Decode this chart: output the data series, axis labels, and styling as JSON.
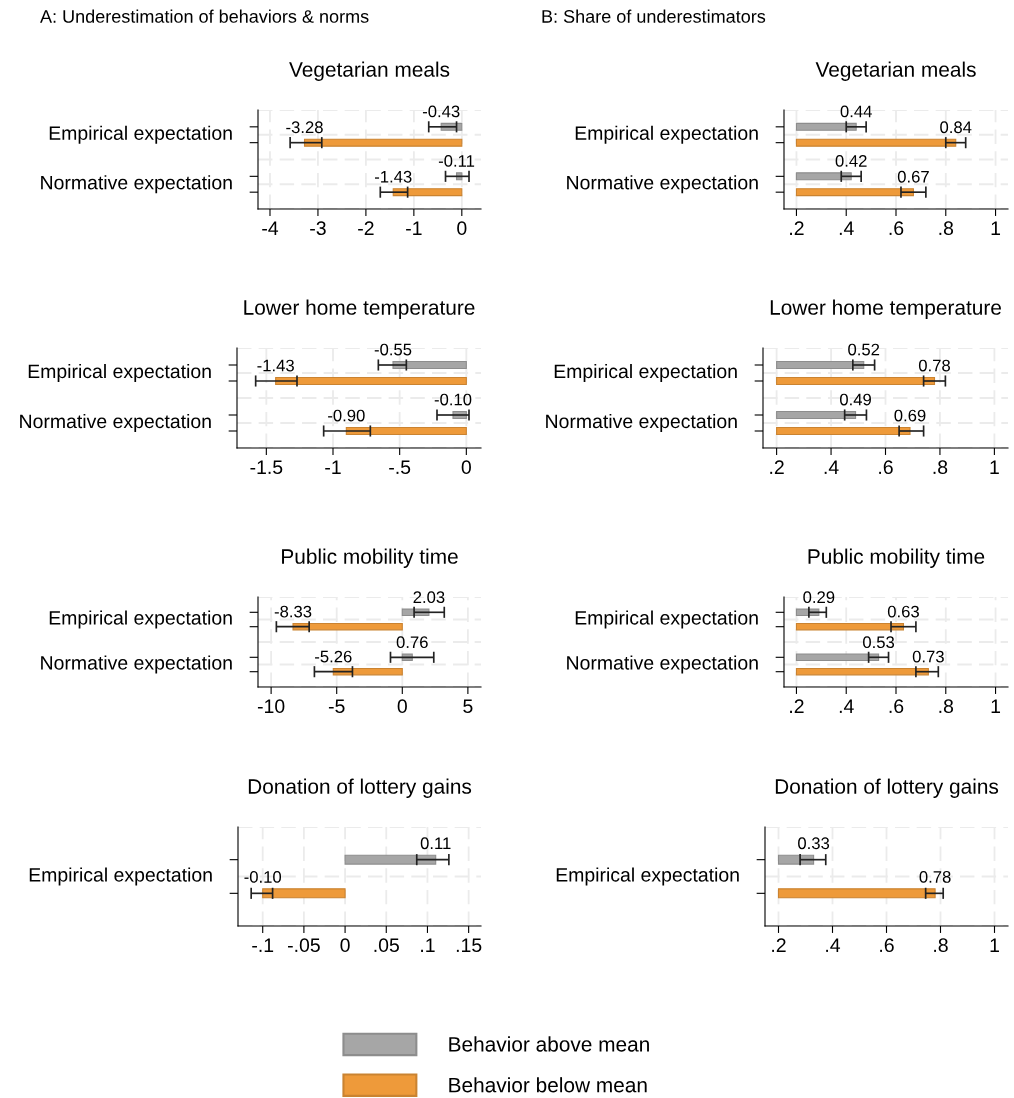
{
  "chart_data": [
    {
      "type": "bar",
      "orientation": "horizontal",
      "subtitle": "A: Underestimation of behaviors & norms",
      "title": "Vegetarian meals",
      "categories": [
        "Empirical expectation",
        "Normative expectation"
      ],
      "xlim": [
        -4.25,
        0.4
      ],
      "xticks": [
        -4,
        -3,
        -2,
        -1,
        0
      ],
      "grid": true,
      "series": [
        {
          "color": "#a6a6a6",
          "values": [
            -0.43,
            -0.11
          ],
          "errors": [
            [
              -0.69,
              -0.11
            ],
            [
              -0.34,
              0.15
            ]
          ],
          "value_labels": [
            "-0.43",
            "-0.11"
          ]
        },
        {
          "color": "#ee9a3a",
          "values": [
            -3.28,
            -1.43
          ],
          "errors": [
            [
              -3.58,
              -2.92
            ],
            [
              -1.7,
              -1.13
            ]
          ],
          "value_labels": [
            "-3.28",
            "-1.43"
          ]
        }
      ]
    },
    {
      "type": "bar",
      "orientation": "horizontal",
      "subtitle": "B: Share of underestimators",
      "title": "Vegetarian meals",
      "categories": [
        "Empirical expectation",
        "Normative expectation"
      ],
      "xlim": [
        0.15,
        1.05
      ],
      "xticks": [
        {
          "value": 0.2,
          "label": ".2"
        },
        {
          "value": 0.4,
          "label": ".4"
        },
        {
          "value": 0.6,
          "label": ".6"
        },
        {
          "value": 0.8,
          "label": ".8"
        },
        1
      ],
      "grid": true,
      "series": [
        {
          "color": "#a6a6a6",
          "base": [
            0.2,
            0.2
          ],
          "values": [
            0.24,
            0.22
          ],
          "errors": [
            [
              0.4,
              0.48
            ],
            [
              0.38,
              0.46
            ]
          ],
          "value_labels": [
            "0.44",
            "0.42"
          ]
        },
        {
          "color": "#ee9a3a",
          "base": [
            0.2,
            0.2
          ],
          "values": [
            0.64,
            0.47
          ],
          "errors": [
            [
              0.8,
              0.88
            ],
            [
              0.62,
              0.72
            ]
          ],
          "value_labels": [
            "0.84",
            "0.67"
          ]
        }
      ]
    },
    {
      "type": "bar",
      "orientation": "horizontal",
      "title": "Lower home temperature",
      "categories": [
        "Empirical expectation",
        "Normative expectation"
      ],
      "xlim": [
        -1.72,
        0.11
      ],
      "xticks": [
        -1.5,
        -1,
        {
          "value": -0.5,
          "label": "-.5"
        },
        0
      ],
      "grid": true,
      "series": [
        {
          "color": "#a6a6a6",
          "values": [
            -0.55,
            -0.1
          ],
          "errors": [
            [
              -0.66,
              -0.45
            ],
            [
              -0.22,
              0.02
            ]
          ],
          "value_labels": [
            "-0.55",
            "-0.10"
          ]
        },
        {
          "color": "#ee9a3a",
          "values": [
            -1.43,
            -0.9
          ],
          "errors": [
            [
              -1.58,
              -1.27
            ],
            [
              -1.07,
              -0.72
            ]
          ],
          "value_labels": [
            "-1.43",
            "-0.90"
          ]
        }
      ]
    },
    {
      "type": "bar",
      "orientation": "horizontal",
      "title": "Lower home temperature",
      "categories": [
        "Empirical expectation",
        "Normative expectation"
      ],
      "xlim": [
        0.15,
        1.05
      ],
      "xticks": [
        {
          "value": 0.2,
          "label": ".2"
        },
        {
          "value": 0.4,
          "label": ".4"
        },
        {
          "value": 0.6,
          "label": ".6"
        },
        {
          "value": 0.8,
          "label": ".8"
        },
        1
      ],
      "grid": true,
      "series": [
        {
          "color": "#a6a6a6",
          "base": [
            0.2,
            0.2
          ],
          "values": [
            0.32,
            0.29
          ],
          "errors": [
            [
              0.48,
              0.56
            ],
            [
              0.45,
              0.53
            ]
          ],
          "value_labels": [
            "0.52",
            "0.49"
          ]
        },
        {
          "color": "#ee9a3a",
          "base": [
            0.2,
            0.2
          ],
          "values": [
            0.58,
            0.49
          ],
          "errors": [
            [
              0.74,
              0.82
            ],
            [
              0.65,
              0.74
            ]
          ],
          "value_labels": [
            "0.78",
            "0.69"
          ]
        }
      ]
    },
    {
      "type": "bar",
      "orientation": "horizontal",
      "title": "Public mobility time",
      "categories": [
        "Empirical expectation",
        "Normative expectation"
      ],
      "xlim": [
        -11,
        6
      ],
      "xticks": [
        -10,
        -5,
        0,
        5
      ],
      "grid": true,
      "series": [
        {
          "color": "#a6a6a6",
          "values": [
            2.03,
            0.76
          ],
          "errors": [
            [
              0.9,
              3.2
            ],
            [
              -0.9,
              2.4
            ]
          ],
          "value_labels": [
            "2.03",
            "0.76"
          ]
        },
        {
          "color": "#ee9a3a",
          "values": [
            -8.33,
            -5.26
          ],
          "errors": [
            [
              -9.6,
              -7.1
            ],
            [
              -6.7,
              -3.8
            ]
          ],
          "value_labels": [
            "-8.33",
            "-5.26"
          ]
        }
      ]
    },
    {
      "type": "bar",
      "orientation": "horizontal",
      "title": "Public mobility time",
      "categories": [
        "Empirical expectation",
        "Normative expectation"
      ],
      "xlim": [
        0.15,
        1.05
      ],
      "xticks": [
        {
          "value": 0.2,
          "label": ".2"
        },
        {
          "value": 0.4,
          "label": ".4"
        },
        {
          "value": 0.6,
          "label": ".6"
        },
        {
          "value": 0.8,
          "label": ".8"
        },
        1
      ],
      "grid": true,
      "series": [
        {
          "color": "#a6a6a6",
          "base": [
            0.2,
            0.2
          ],
          "values": [
            0.09,
            0.33
          ],
          "errors": [
            [
              0.25,
              0.32
            ],
            [
              0.49,
              0.57
            ]
          ],
          "value_labels": [
            "0.29",
            "0.53"
          ]
        },
        {
          "color": "#ee9a3a",
          "base": [
            0.2,
            0.2
          ],
          "values": [
            0.43,
            0.53
          ],
          "errors": [
            [
              0.58,
              0.68
            ],
            [
              0.68,
              0.77
            ]
          ],
          "value_labels": [
            "0.63",
            "0.73"
          ]
        }
      ]
    },
    {
      "type": "bar",
      "orientation": "horizontal",
      "title": "Donation of lottery gains",
      "categories": [
        "Empirical expectation"
      ],
      "xlim": [
        -0.13,
        0.165
      ],
      "xticks": [
        {
          "value": -0.1,
          "label": "-.1"
        },
        {
          "value": -0.05,
          "label": "-.05"
        },
        0,
        {
          "value": 0.05,
          "label": ".05"
        },
        {
          "value": 0.1,
          "label": ".1"
        },
        {
          "value": 0.15,
          "label": ".15"
        }
      ],
      "grid": true,
      "series": [
        {
          "color": "#a6a6a6",
          "values": [
            0.11
          ],
          "errors": [
            [
              0.087,
              0.126
            ]
          ],
          "value_labels": [
            "0.11"
          ]
        },
        {
          "color": "#ee9a3a",
          "values": [
            -0.1
          ],
          "errors": [
            [
              -0.114,
              -0.088
            ]
          ],
          "value_labels": [
            "-0.10"
          ]
        }
      ]
    },
    {
      "type": "bar",
      "orientation": "horizontal",
      "title": "Donation of lottery gains",
      "categories": [
        "Empirical expectation"
      ],
      "xlim": [
        0.15,
        1.05
      ],
      "xticks": [
        {
          "value": 0.2,
          "label": ".2"
        },
        {
          "value": 0.4,
          "label": ".4"
        },
        {
          "value": 0.6,
          "label": ".6"
        },
        {
          "value": 0.8,
          "label": ".8"
        },
        1
      ],
      "grid": true,
      "legend": "bottom",
      "series": [
        {
          "name": "Behavior above mean",
          "color": "#a6a6a6",
          "base": [
            0.2
          ],
          "values": [
            0.13
          ],
          "errors": [
            [
              0.28,
              0.375
            ]
          ],
          "value_labels": [
            "0.33"
          ]
        },
        {
          "name": "Behavior below mean",
          "color": "#ee9a3a",
          "base": [
            0.2
          ],
          "values": [
            0.58
          ],
          "errors": [
            [
              0.745,
              0.81
            ]
          ],
          "value_labels": [
            "0.78"
          ]
        }
      ]
    }
  ]
}
